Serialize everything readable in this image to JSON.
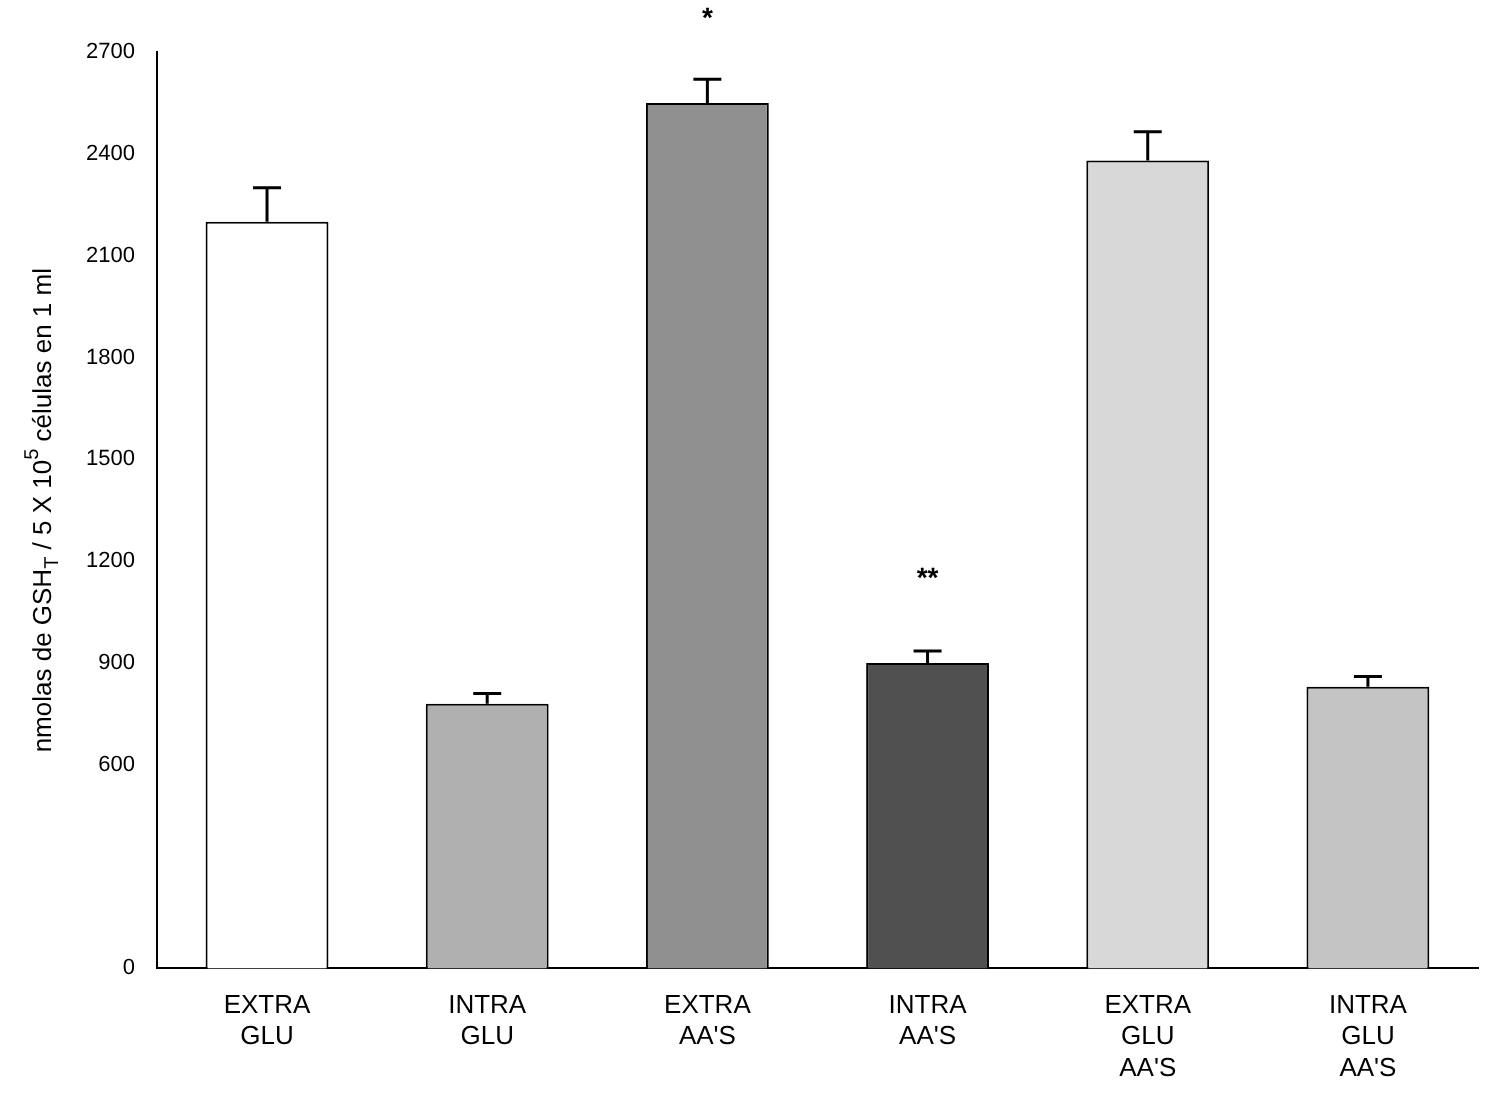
{
  "chart_data": {
    "type": "bar",
    "ylabel": "nmolas de GSH$_{T}$ / 5 X 10$^{5}$ células en 1 ml",
    "categories": [
      "EXTRA GLU",
      "INTRA GLU",
      "EXTRA AA'S",
      "INTRA AA'S",
      "EXTRA GLU AA'S",
      "INTRA GLU AA'S"
    ],
    "values": [
      2200,
      780,
      2550,
      900,
      2380,
      830
    ],
    "colors": [
      "#ffffff",
      "#b0b0b0",
      "#909090",
      "#505050",
      "#d8d8d8",
      "#c4c4c4"
    ],
    "errors": [
      [
        2200,
        2300
      ],
      [
        780,
        810
      ],
      [
        2550,
        2620
      ],
      [
        900,
        935
      ],
      [
        2380,
        2465
      ],
      [
        830,
        860
      ]
    ],
    "annotations": [
      {
        "text": "*",
        "x": "EXTRA AA'S",
        "y": 2550
      },
      {
        "text": "**",
        "x": "INTRA AA'S",
        "y": 900
      }
    ],
    "ylim": [
      0,
      2700
    ],
    "yticks": [
      0,
      600,
      900,
      1200,
      1500,
      1800,
      2100,
      2400,
      2700
    ],
    "grid": false,
    "legend": false
  }
}
